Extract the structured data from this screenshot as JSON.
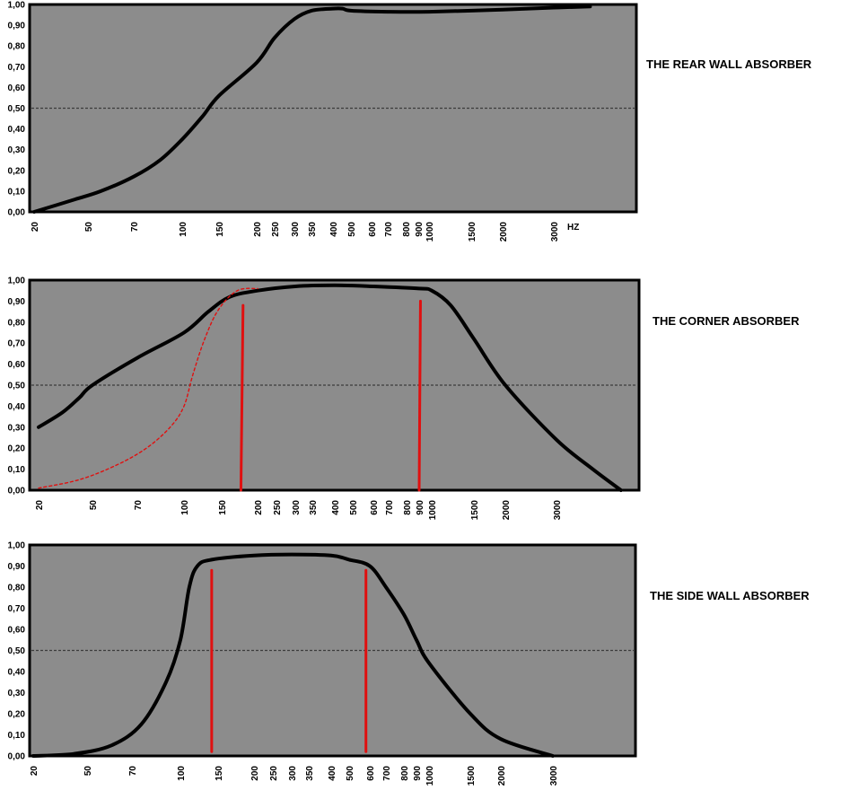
{
  "y_ticks": [
    "0,00",
    "0,10",
    "0,20",
    "0,30",
    "0,40",
    "0,50",
    "0,60",
    "0,70",
    "0,80",
    "0,90",
    "1,00"
  ],
  "chart_data": [
    {
      "type": "line",
      "title": "THE REAR WALL ABSORBER",
      "x_unit_label": "HZ",
      "ylim": [
        0,
        1
      ],
      "x_tick_labels": [
        "20",
        "50",
        "70",
        "100",
        "150",
        "200",
        "250",
        "300",
        "350",
        "400",
        "500",
        "600",
        "700",
        "800",
        "900",
        "1000",
        "1500",
        "2000",
        "3000"
      ],
      "reference_line": {
        "y": 0.5,
        "style": "dashed"
      },
      "series": [
        {
          "color": "#000000",
          "style": "solid",
          "points": [
            [
              20,
              0.0
            ],
            [
              40,
              0.06
            ],
            [
              55,
              0.1
            ],
            [
              70,
              0.17
            ],
            [
              85,
              0.25
            ],
            [
              100,
              0.35
            ],
            [
              125,
              0.46
            ],
            [
              150,
              0.56
            ],
            [
              200,
              0.72
            ],
            [
              250,
              0.84
            ],
            [
              300,
              0.93
            ],
            [
              350,
              0.97
            ],
            [
              400,
              0.98
            ],
            [
              450,
              0.98
            ],
            [
              500,
              0.97
            ],
            [
              700,
              0.965
            ],
            [
              1000,
              0.965
            ],
            [
              2000,
              0.975
            ],
            [
              3000,
              0.985
            ],
            [
              4000,
              0.99
            ]
          ]
        }
      ],
      "markers": []
    },
    {
      "type": "line",
      "title": "THE CORNER ABSORBER",
      "x_unit_label": "",
      "ylim": [
        0,
        1
      ],
      "x_tick_labels": [
        "20",
        "50",
        "70",
        "100",
        "150",
        "200",
        "250",
        "300",
        "350",
        "400",
        "500",
        "600",
        "700",
        "800",
        "900",
        "1000",
        "1500",
        "2000",
        "3000"
      ],
      "reference_line": {
        "y": 0.5,
        "style": "dashed"
      },
      "series": [
        {
          "color": "#000000",
          "style": "solid",
          "points": [
            [
              20,
              0.3
            ],
            [
              30,
              0.37
            ],
            [
              40,
              0.44
            ],
            [
              50,
              0.5
            ],
            [
              70,
              0.63
            ],
            [
              100,
              0.75
            ],
            [
              130,
              0.85
            ],
            [
              160,
              0.92
            ],
            [
              200,
              0.95
            ],
            [
              300,
              0.97
            ],
            [
              400,
              0.975
            ],
            [
              600,
              0.97
            ],
            [
              900,
              0.96
            ],
            [
              1000,
              0.95
            ],
            [
              1200,
              0.88
            ],
            [
              1500,
              0.72
            ],
            [
              2000,
              0.5
            ],
            [
              3000,
              0.24
            ],
            [
              4000,
              0.1
            ],
            [
              5000,
              0.0
            ]
          ]
        },
        {
          "color": "#e01010",
          "style": "dashed",
          "points": [
            [
              20,
              0.01
            ],
            [
              40,
              0.05
            ],
            [
              60,
              0.12
            ],
            [
              75,
              0.2
            ],
            [
              90,
              0.3
            ],
            [
              100,
              0.4
            ],
            [
              110,
              0.55
            ],
            [
              125,
              0.72
            ],
            [
              145,
              0.86
            ],
            [
              170,
              0.95
            ],
            [
              200,
              0.96
            ]
          ]
        }
      ],
      "markers": [
        {
          "color": "#e01010",
          "from": [
            175,
            0.0
          ],
          "to": [
            178,
            0.88
          ]
        },
        {
          "color": "#e01010",
          "from": [
            900,
            0.0
          ],
          "to": [
            910,
            0.9
          ]
        }
      ]
    },
    {
      "type": "line",
      "title": "THE SIDE WALL ABSORBER",
      "x_unit_label": "",
      "ylim": [
        0,
        1
      ],
      "x_tick_labels": [
        "20",
        "50",
        "70",
        "100",
        "150",
        "200",
        "250",
        "300",
        "350",
        "400",
        "500",
        "600",
        "700",
        "800",
        "900",
        "1000",
        "1500",
        "2000",
        "3000"
      ],
      "reference_line": {
        "y": 0.5,
        "style": "dashed"
      },
      "series": [
        {
          "color": "#000000",
          "style": "solid",
          "points": [
            [
              20,
              0.0
            ],
            [
              40,
              0.01
            ],
            [
              60,
              0.05
            ],
            [
              75,
              0.15
            ],
            [
              90,
              0.35
            ],
            [
              100,
              0.55
            ],
            [
              110,
              0.8
            ],
            [
              120,
              0.9
            ],
            [
              140,
              0.93
            ],
            [
              200,
              0.95
            ],
            [
              300,
              0.955
            ],
            [
              400,
              0.95
            ],
            [
              500,
              0.93
            ],
            [
              600,
              0.9
            ],
            [
              700,
              0.8
            ],
            [
              800,
              0.67
            ],
            [
              900,
              0.55
            ],
            [
              1000,
              0.44
            ],
            [
              1500,
              0.2
            ],
            [
              2000,
              0.08
            ],
            [
              3000,
              0.0
            ]
          ]
        }
      ],
      "markers": [
        {
          "color": "#e01010",
          "from": [
            140,
            0.02
          ],
          "to": [
            140,
            0.88
          ]
        },
        {
          "color": "#e01010",
          "from": [
            580,
            0.02
          ],
          "to": [
            580,
            0.88
          ]
        }
      ]
    }
  ]
}
